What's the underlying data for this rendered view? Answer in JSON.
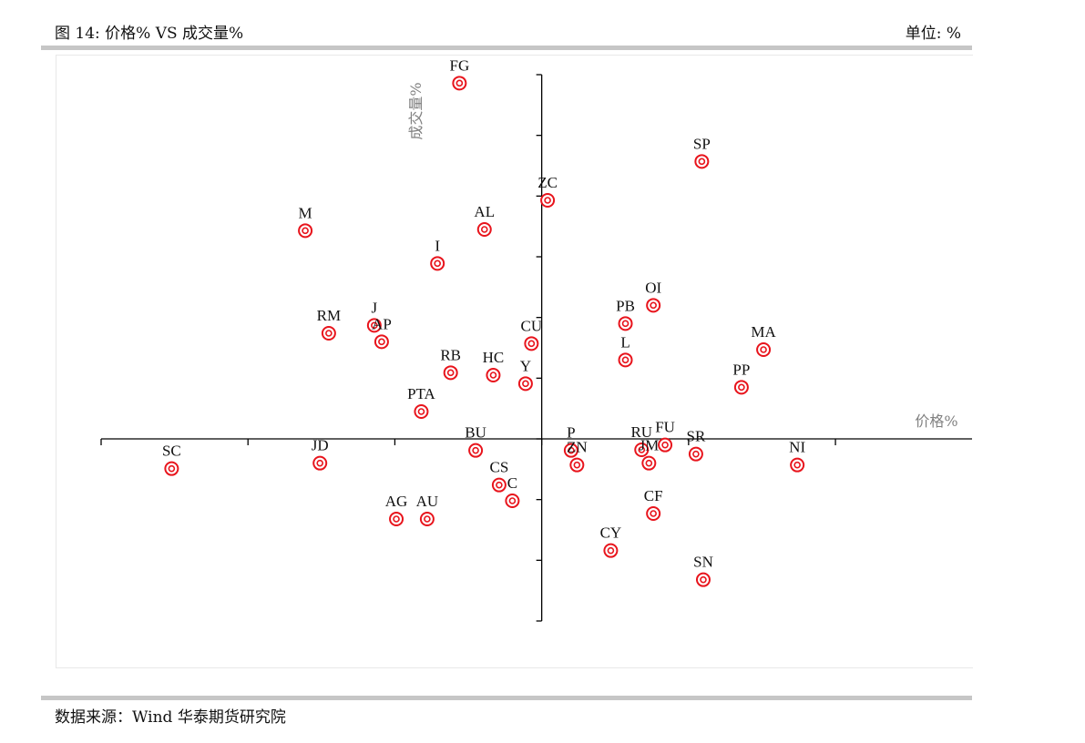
{
  "header": {
    "title": "图 14:   价格% VS  成交量%",
    "unit": "单位: %"
  },
  "footer": {
    "source": "数据来源：Wind  华泰期货研究院"
  },
  "colors": {
    "marker": "#e8141c",
    "axis": "#000000",
    "axis_label": "#808080"
  },
  "chart_data": {
    "type": "scatter",
    "xlabel": "价格%",
    "ylabel": "成交量%",
    "xlim": [
      -3,
      2.93
    ],
    "ylim": [
      -3,
      6
    ],
    "x_ticks": [
      -3,
      -2,
      -1,
      0,
      1,
      2
    ],
    "y_ticks": [
      -3,
      -2,
      -1,
      0,
      1,
      2,
      3,
      4,
      5,
      6
    ],
    "grid": false,
    "points": [
      {
        "label": "FG",
        "x": -0.56,
        "y": 5.86
      },
      {
        "label": "SP",
        "x": 1.09,
        "y": 4.57
      },
      {
        "label": "ZC",
        "x": 0.04,
        "y": 3.93
      },
      {
        "label": "M",
        "x": -1.61,
        "y": 3.43
      },
      {
        "label": "AL",
        "x": -0.39,
        "y": 3.45
      },
      {
        "label": "I",
        "x": -0.71,
        "y": 2.89
      },
      {
        "label": "OI",
        "x": 0.76,
        "y": 2.2
      },
      {
        "label": "PB",
        "x": 0.57,
        "y": 1.9
      },
      {
        "label": "J",
        "x": -1.14,
        "y": 1.87
      },
      {
        "label": "RM",
        "x": -1.45,
        "y": 1.74
      },
      {
        "label": "AP",
        "x": -1.09,
        "y": 1.6
      },
      {
        "label": "CU",
        "x": -0.07,
        "y": 1.57
      },
      {
        "label": "MA",
        "x": 1.51,
        "y": 1.47
      },
      {
        "label": "L",
        "x": 0.57,
        "y": 1.3
      },
      {
        "label": "RB",
        "x": -0.62,
        "y": 1.09
      },
      {
        "label": "HC",
        "x": -0.33,
        "y": 1.05
      },
      {
        "label": "Y",
        "x": -0.11,
        "y": 0.91
      },
      {
        "label": "PP",
        "x": 1.36,
        "y": 0.85
      },
      {
        "label": "PTA",
        "x": -0.82,
        "y": 0.45
      },
      {
        "label": "BU",
        "x": -0.45,
        "y": -0.19
      },
      {
        "label": "P",
        "x": 0.2,
        "y": -0.19
      },
      {
        "label": "RU",
        "x": 0.68,
        "y": -0.18
      },
      {
        "label": "FU",
        "x": 0.84,
        "y": -0.1
      },
      {
        "label": "SR",
        "x": 1.05,
        "y": -0.25
      },
      {
        "label": "ZN",
        "x": 0.24,
        "y": -0.43
      },
      {
        "label": "JM",
        "x": 0.73,
        "y": -0.4
      },
      {
        "label": "NI",
        "x": 1.74,
        "y": -0.43
      },
      {
        "label": "SC",
        "x": -2.52,
        "y": -0.49
      },
      {
        "label": "JD",
        "x": -1.51,
        "y": -0.4
      },
      {
        "label": "CS",
        "x": -0.29,
        "y": -0.76
      },
      {
        "label": "C",
        "x": -0.2,
        "y": -1.02
      },
      {
        "label": "CF",
        "x": 0.76,
        "y": -1.23
      },
      {
        "label": "AG",
        "x": -0.99,
        "y": -1.32
      },
      {
        "label": "AU",
        "x": -0.78,
        "y": -1.32
      },
      {
        "label": "CY",
        "x": 0.47,
        "y": -1.84
      },
      {
        "label": "SN",
        "x": 1.1,
        "y": -2.32
      }
    ]
  }
}
